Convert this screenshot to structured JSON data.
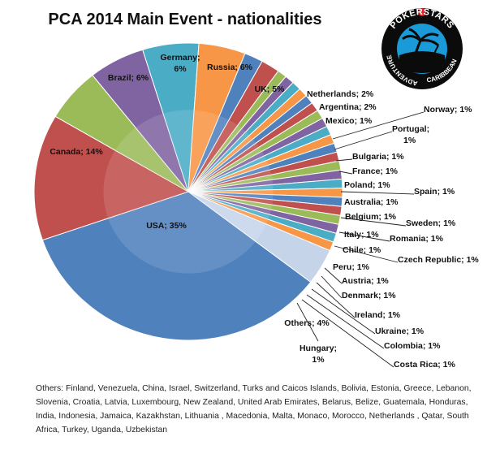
{
  "chart_data": {
    "type": "pie",
    "title": "PCA 2014 Main Event - nationalities",
    "slices": [
      {
        "name": "USA",
        "value": 35,
        "color": "#4f81bd",
        "label": "USA; 35%"
      },
      {
        "name": "Canada",
        "value": 14,
        "color": "#c0504d",
        "label": "Canada; 14%"
      },
      {
        "name": "Brazil",
        "value": 6,
        "color": "#9bbb59",
        "label": "Brazil; 6%"
      },
      {
        "name": "Germany",
        "value": 6,
        "color": "#8064a2",
        "label_lines": [
          "Germany;",
          "6%"
        ]
      },
      {
        "name": "Russia",
        "value": 6,
        "color": "#4bacc6",
        "label": "Russia; 6%"
      },
      {
        "name": "UK",
        "value": 5,
        "color": "#f79646",
        "label": "UK; 5%"
      },
      {
        "name": "Netherlands",
        "value": 2,
        "color": "#4f81bd",
        "label": "Netherlands; 2%"
      },
      {
        "name": "Argentina",
        "value": 2,
        "color": "#c0504d",
        "label": "Argentina; 2%"
      },
      {
        "name": "Mexico",
        "value": 1,
        "color": "#9bbb59",
        "label": "Mexico; 1%"
      },
      {
        "name": "Norway",
        "value": 1,
        "color": "#8064a2",
        "label": "Norway; 1%"
      },
      {
        "name": "Portugal",
        "value": 1,
        "color": "#4bacc6",
        "label_lines": [
          "Portugal;",
          "1%"
        ]
      },
      {
        "name": "Bulgaria",
        "value": 1,
        "color": "#f79646",
        "label": "Bulgaria; 1%"
      },
      {
        "name": "France",
        "value": 1,
        "color": "#4f81bd",
        "label": "France; 1%"
      },
      {
        "name": "Poland",
        "value": 1,
        "color": "#c0504d",
        "label": "Poland; 1%"
      },
      {
        "name": "Spain",
        "value": 1,
        "color": "#9bbb59",
        "label": "Spain; 1%"
      },
      {
        "name": "Australia",
        "value": 1,
        "color": "#8064a2",
        "label": "Australia; 1%"
      },
      {
        "name": "Belgium",
        "value": 1,
        "color": "#4bacc6",
        "label": "Belgium; 1%"
      },
      {
        "name": "Sweden",
        "value": 1,
        "color": "#f79646",
        "label": "Sweden; 1%"
      },
      {
        "name": "Italy",
        "value": 1,
        "color": "#4f81bd",
        "label": "Italy; 1%"
      },
      {
        "name": "Romania",
        "value": 1,
        "color": "#c0504d",
        "label": "Romania; 1%"
      },
      {
        "name": "Chile",
        "value": 1,
        "color": "#9bbb59",
        "label": "Chile; 1%"
      },
      {
        "name": "Czech Republic",
        "value": 1,
        "color": "#8064a2",
        "label": "Czech Republic; 1%"
      },
      {
        "name": "Peru",
        "value": 1,
        "color": "#4bacc6",
        "label": "Peru; 1%"
      },
      {
        "name": "Austria",
        "value": 1,
        "color": "#f79646",
        "label": "Austria; 1%"
      },
      {
        "name": "Denmark",
        "value": 1,
        "color": "#4f81bd",
        "label": "Denmark; 1%"
      },
      {
        "name": "Ireland",
        "value": 1,
        "color": "#c0504d",
        "label": "Ireland; 1%"
      },
      {
        "name": "Ukraine",
        "value": 1,
        "color": "#9bbb59",
        "label": "Ukraine; 1%"
      },
      {
        "name": "Colombia",
        "value": 1,
        "color": "#8064a2",
        "label": "Colombia; 1%"
      },
      {
        "name": "Costa Rica",
        "value": 1,
        "color": "#4bacc6",
        "label": "Costa Rica; 1%"
      },
      {
        "name": "Hungary",
        "value": 1,
        "color": "#f79646",
        "label_lines": [
          "Hungary;",
          "1%"
        ]
      },
      {
        "name": "Others",
        "value": 4,
        "color": "#c6d4ea",
        "label": "Others; 4%"
      }
    ]
  },
  "logo": {
    "text_top": "POKERSTARS",
    "text_left": "ADVENTURE",
    "text_bottom": "CARIBBEAN",
    "colors": {
      "ring": "#0b0b0b",
      "accent": "#d8262b",
      "inner": "#1a9ad6",
      "text": "#ffffff"
    }
  },
  "footnote": "Others: Finland, Venezuela, China, Israel, Switzerland, Turks and Caicos Islands, Bolivia, Estonia, Greece, Lebanon, Slovenia, Croatia, Latvia, Luxembourg, New Zealand, United Arab Emirates, Belarus, Belize, Guatemala, Honduras, India, Indonesia, Jamaica, Kazakhstan, Lithuania , Macedonia, Malta, Monaco, Morocco, Netherlands , Qatar, South Africa, Turkey, Uganda, Uzbekistan"
}
